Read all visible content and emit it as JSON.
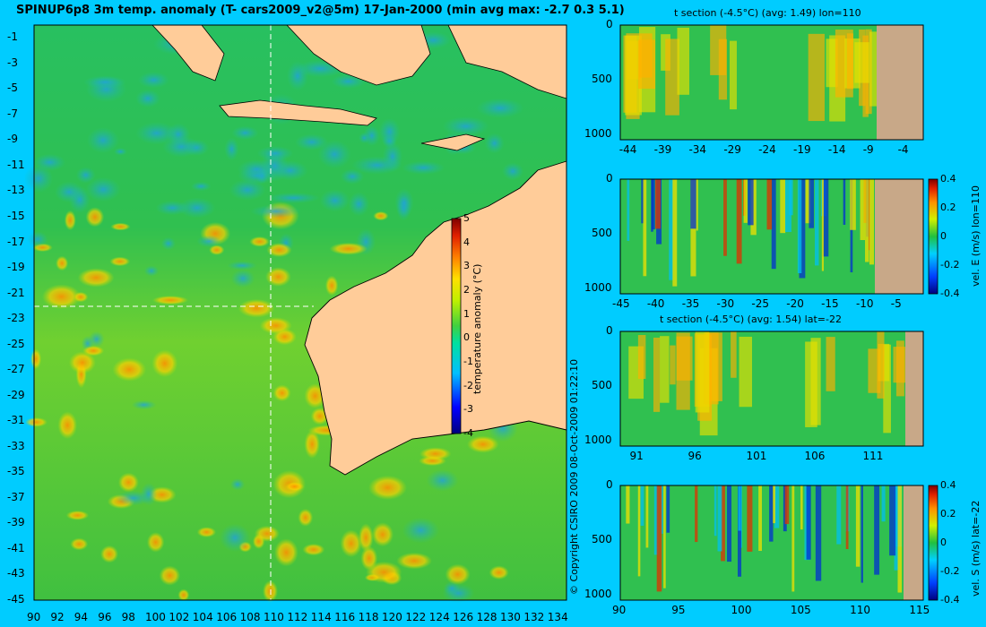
{
  "title": "SPINUP6p8 3m temp. anomaly (T- cars2009_v2@5m) 17-Jan-2000 (min avg max: -2.7 0.3 5.1)",
  "copyright": "© Copyright CSIRO 2009   08-Oct-2009 01:22:10",
  "colors": {
    "background": "#00ccff",
    "land": "#ffcc99",
    "section_land": "#c8a888"
  },
  "chart_data": [
    {
      "type": "heatmap",
      "name": "map",
      "x_ticks": [
        "90",
        "92",
        "94",
        "96",
        "98",
        "100",
        "102",
        "104",
        "106",
        "108",
        "110",
        "112",
        "114",
        "116",
        "118",
        "120",
        "122",
        "124",
        "126",
        "128",
        "130",
        "132",
        "134"
      ],
      "y_ticks": [
        "-1",
        "-3",
        "-5",
        "-7",
        "-9",
        "-11",
        "-13",
        "-15",
        "-17",
        "-19",
        "-21",
        "-23",
        "-25",
        "-27",
        "-29",
        "-31",
        "-33",
        "-35",
        "-37",
        "-39",
        "-41",
        "-43",
        "-45"
      ],
      "xlim": [
        90,
        135
      ],
      "ylim": [
        -45,
        0
      ],
      "crosshair": {
        "lon": 110,
        "lat": -22
      },
      "colorbar": {
        "label": "temperature anomaly (°C)",
        "ticks": [
          "5",
          "4",
          "3",
          "2",
          "1",
          "0",
          "-1",
          "-2",
          "-3",
          "-4"
        ],
        "range": [
          -4,
          5
        ]
      }
    },
    {
      "type": "heatmap",
      "name": "t-section-lon",
      "title": "t section (-4.5°C) (avg: 1.49) lon=110",
      "x_ticks": [
        "-44",
        "-39",
        "-34",
        "-29",
        "-24",
        "-19",
        "-14",
        "-9",
        "-4"
      ],
      "y_ticks": [
        "0",
        "500",
        "1000"
      ]
    },
    {
      "type": "heatmap",
      "name": "vel-e-section",
      "x_ticks": [
        "-45",
        "-40",
        "-35",
        "-30",
        "-25",
        "-20",
        "-15",
        "-10",
        "-5"
      ],
      "y_ticks": [
        "0",
        "500",
        "1000"
      ],
      "colorbar": {
        "label": "vel. E (m/s) lon=110",
        "ticks": [
          "0.4",
          "0.2",
          "0",
          "-0.2",
          "-0.4"
        ],
        "range": [
          -0.4,
          0.4
        ]
      }
    },
    {
      "type": "heatmap",
      "name": "t-section-lat",
      "title": "t section (-4.5°C) (avg: 1.54) lat=-22",
      "x_ticks": [
        "91",
        "96",
        "101",
        "106",
        "111"
      ],
      "y_ticks": [
        "0",
        "500",
        "1000"
      ]
    },
    {
      "type": "heatmap",
      "name": "vel-s-section",
      "x_ticks": [
        "90",
        "95",
        "100",
        "105",
        "110",
        "115"
      ],
      "y_ticks": [
        "0",
        "500",
        "1000"
      ],
      "colorbar": {
        "label": "vel. S (m/s) lat=-22",
        "ticks": [
          "0.4",
          "0.2",
          "0",
          "-0.2",
          "-0.4"
        ],
        "range": [
          -0.4,
          0.4
        ]
      }
    }
  ]
}
